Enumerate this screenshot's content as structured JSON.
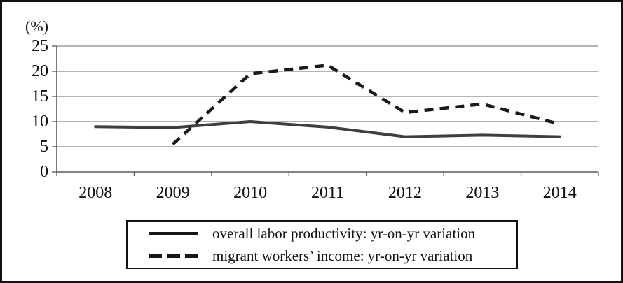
{
  "chart_data": {
    "type": "line",
    "title": "",
    "unit_label": "(%)",
    "categories": [
      "2008",
      "2009",
      "2010",
      "2011",
      "2012",
      "2013",
      "2014"
    ],
    "series": [
      {
        "name": "overall labor productivity: yr-on-yr variation",
        "style": "solid",
        "color": "#3f3f3f",
        "values": [
          9.0,
          8.8,
          10.0,
          8.9,
          7.0,
          7.3,
          7.0
        ]
      },
      {
        "name": "migrant workers’ income: yr-on-yr variation",
        "style": "dashed",
        "color": "#1a1a1a",
        "values": [
          null,
          5.5,
          19.5,
          21.2,
          11.8,
          13.5,
          9.5
        ]
      }
    ],
    "ylim": [
      0,
      25
    ],
    "y_ticks": [
      0,
      5,
      10,
      15,
      20,
      25
    ],
    "xlabel": "",
    "ylabel": "(%)",
    "grid": "horizontal",
    "legend_position": "bottom"
  },
  "colors": {
    "gridline": "#6b6b6b",
    "axis": "#5a5a5a",
    "text": "#111111",
    "background": "#ffffff",
    "frame_border": "#111111"
  }
}
